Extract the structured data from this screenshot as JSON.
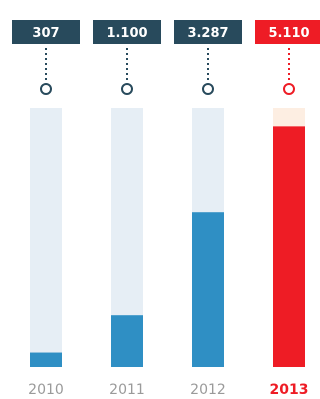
{
  "chart_data": {
    "type": "bar",
    "categories": [
      "2010",
      "2011",
      "2012",
      "2013"
    ],
    "values": [
      307,
      1100,
      3287,
      5110
    ],
    "value_labels": [
      "307",
      "1.100",
      "3.287",
      "5.110"
    ],
    "ylim": [
      0,
      5500
    ],
    "highlight_index": 3,
    "title": "",
    "xlabel": "",
    "ylabel": ""
  },
  "colors": {
    "label_box": "#284a5c",
    "label_box_highlight": "#ee1c25",
    "bar_fill": "#2f8fc4",
    "bar_track": "#e6eef5",
    "bar_fill_highlight": "#ee1c25",
    "bar_track_highlight": "#fdeee2",
    "year_text": "#9a9a9a",
    "year_text_highlight": "#ee1c25"
  }
}
